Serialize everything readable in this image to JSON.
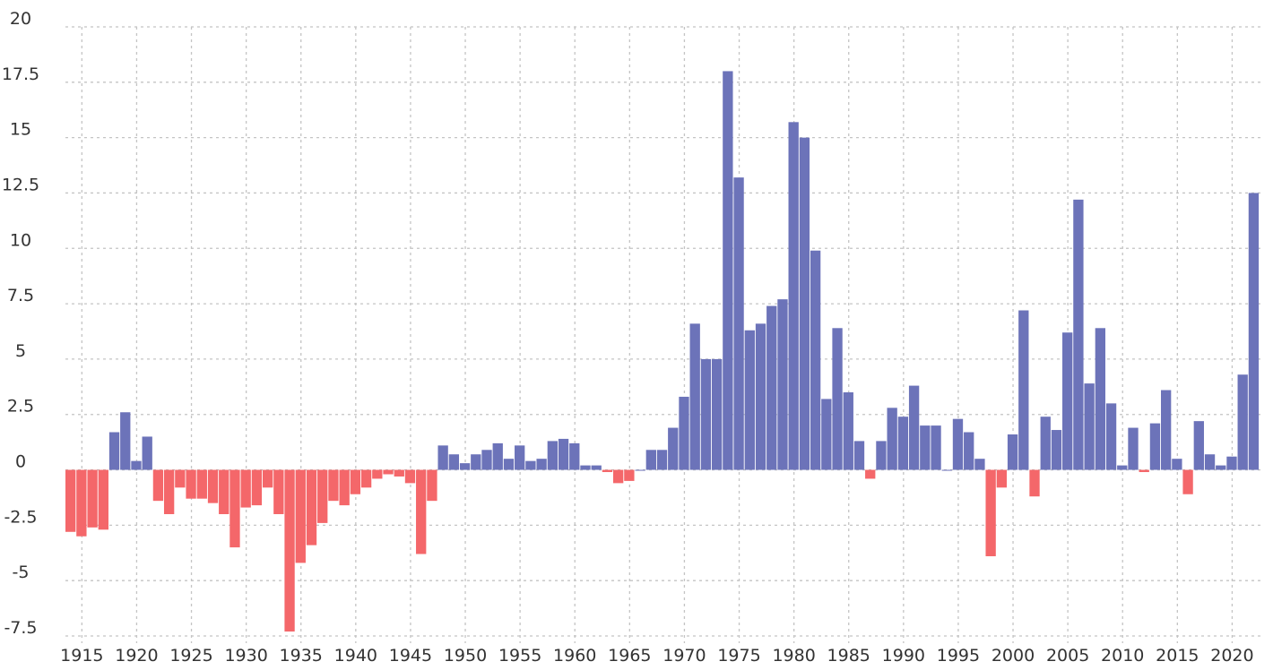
{
  "chart_data": {
    "type": "bar",
    "title": "",
    "xlabel": "",
    "ylabel": "",
    "ylim": [
      -7.5,
      20
    ],
    "xlim": [
      1914,
      2022
    ],
    "y_ticks": [
      "20",
      "17.5",
      "15",
      "12.5",
      "10",
      "7.5",
      "5",
      "2.5",
      "0",
      "-2.5",
      "-5",
      "-7.5"
    ],
    "y_tick_values": [
      20,
      17.5,
      15,
      12.5,
      10,
      7.5,
      5,
      2.5,
      0,
      -2.5,
      -5,
      -7.5
    ],
    "x_ticks": [
      "1915",
      "1920",
      "1925",
      "1930",
      "1935",
      "1940",
      "1945",
      "1950",
      "1955",
      "1960",
      "1965",
      "1970",
      "1975",
      "1980",
      "1985",
      "1990",
      "1995",
      "2000",
      "2005",
      "2010",
      "2015",
      "2020"
    ],
    "grid": true,
    "legend": "none",
    "colors": {
      "positive": "#6c73b9",
      "negative": "#f4676a",
      "grid": "#c4c4c4",
      "text": "#333333"
    },
    "x": [
      1914,
      1915,
      1916,
      1917,
      1918,
      1919,
      1920,
      1921,
      1922,
      1923,
      1924,
      1925,
      1926,
      1927,
      1928,
      1929,
      1930,
      1931,
      1932,
      1933,
      1934,
      1935,
      1936,
      1937,
      1938,
      1939,
      1940,
      1941,
      1942,
      1943,
      1944,
      1945,
      1946,
      1947,
      1948,
      1949,
      1950,
      1951,
      1952,
      1953,
      1954,
      1955,
      1956,
      1957,
      1958,
      1959,
      1960,
      1961,
      1962,
      1963,
      1964,
      1965,
      1966,
      1967,
      1968,
      1969,
      1970,
      1971,
      1972,
      1973,
      1974,
      1975,
      1976,
      1977,
      1978,
      1979,
      1980,
      1981,
      1982,
      1983,
      1984,
      1985,
      1986,
      1987,
      1988,
      1989,
      1990,
      1991,
      1992,
      1993,
      1994,
      1995,
      1996,
      1997,
      1998,
      1999,
      2000,
      2001,
      2002,
      2003,
      2004,
      2005,
      2006,
      2007,
      2008,
      2009,
      2010,
      2011,
      2012,
      2013,
      2014,
      2015,
      2016,
      2017,
      2018,
      2019,
      2020,
      2021,
      2022
    ],
    "values": [
      -2.8,
      -3.0,
      -2.6,
      -2.7,
      1.7,
      2.6,
      0.4,
      1.5,
      -1.4,
      -2.0,
      -0.8,
      -1.3,
      -1.3,
      -1.5,
      -2.0,
      -3.5,
      -1.7,
      -1.6,
      -0.8,
      -2.0,
      -7.3,
      -4.2,
      -3.4,
      -2.4,
      -1.4,
      -1.6,
      -1.1,
      -0.8,
      -0.4,
      -0.2,
      -0.3,
      -0.6,
      -3.8,
      -1.4,
      1.1,
      0.7,
      0.3,
      0.7,
      0.9,
      1.2,
      0.5,
      1.1,
      0.4,
      0.5,
      1.3,
      1.4,
      1.2,
      0.2,
      0.2,
      -0.1,
      -0.6,
      -0.5,
      0.0,
      0.9,
      0.9,
      1.9,
      3.3,
      6.6,
      5.0,
      5.0,
      18.0,
      13.2,
      6.3,
      6.6,
      7.4,
      7.7,
      15.7,
      15.0,
      9.9,
      3.2,
      6.4,
      3.5,
      1.3,
      -0.4,
      1.3,
      2.8,
      2.4,
      3.8,
      2.0,
      2.0,
      0.0,
      2.3,
      1.7,
      0.5,
      -3.9,
      -0.8,
      1.6,
      7.2,
      -1.2,
      2.4,
      1.8,
      6.2,
      12.2,
      3.9,
      6.4,
      3.0,
      0.2,
      1.9,
      -0.1,
      2.1,
      3.6,
      0.5,
      -1.1,
      2.2,
      0.7,
      0.2,
      0.6,
      4.3,
      12.5
    ]
  }
}
